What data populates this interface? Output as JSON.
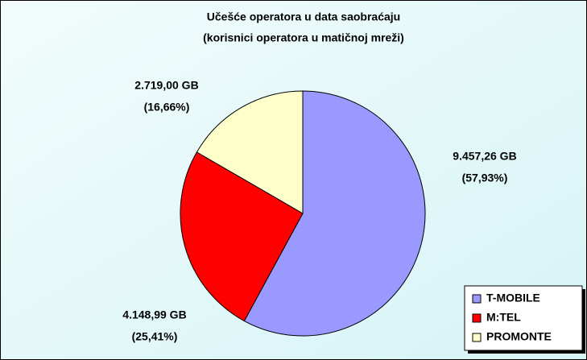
{
  "chart_data": {
    "type": "pie",
    "title": "Učešće operatora u data saobraćaju",
    "subtitle": "(korisnici operatora u matičnoj mreži)",
    "categories": [
      "T-MOBILE",
      "M:TEL",
      "PROMONTE"
    ],
    "values": [
      9457.26,
      4148.99,
      2719.0
    ],
    "value_labels": [
      "9.457,26 GB",
      "4.148,99 GB",
      "2.719,00 GB"
    ],
    "percents": [
      57.93,
      25.41,
      16.66
    ],
    "percent_labels": [
      "(57,93%)",
      "(25,41%)",
      "(16,66%)"
    ],
    "colors": [
      "#9999ff",
      "#ff0000",
      "#ffffcc"
    ],
    "legend": "bottom-right"
  }
}
